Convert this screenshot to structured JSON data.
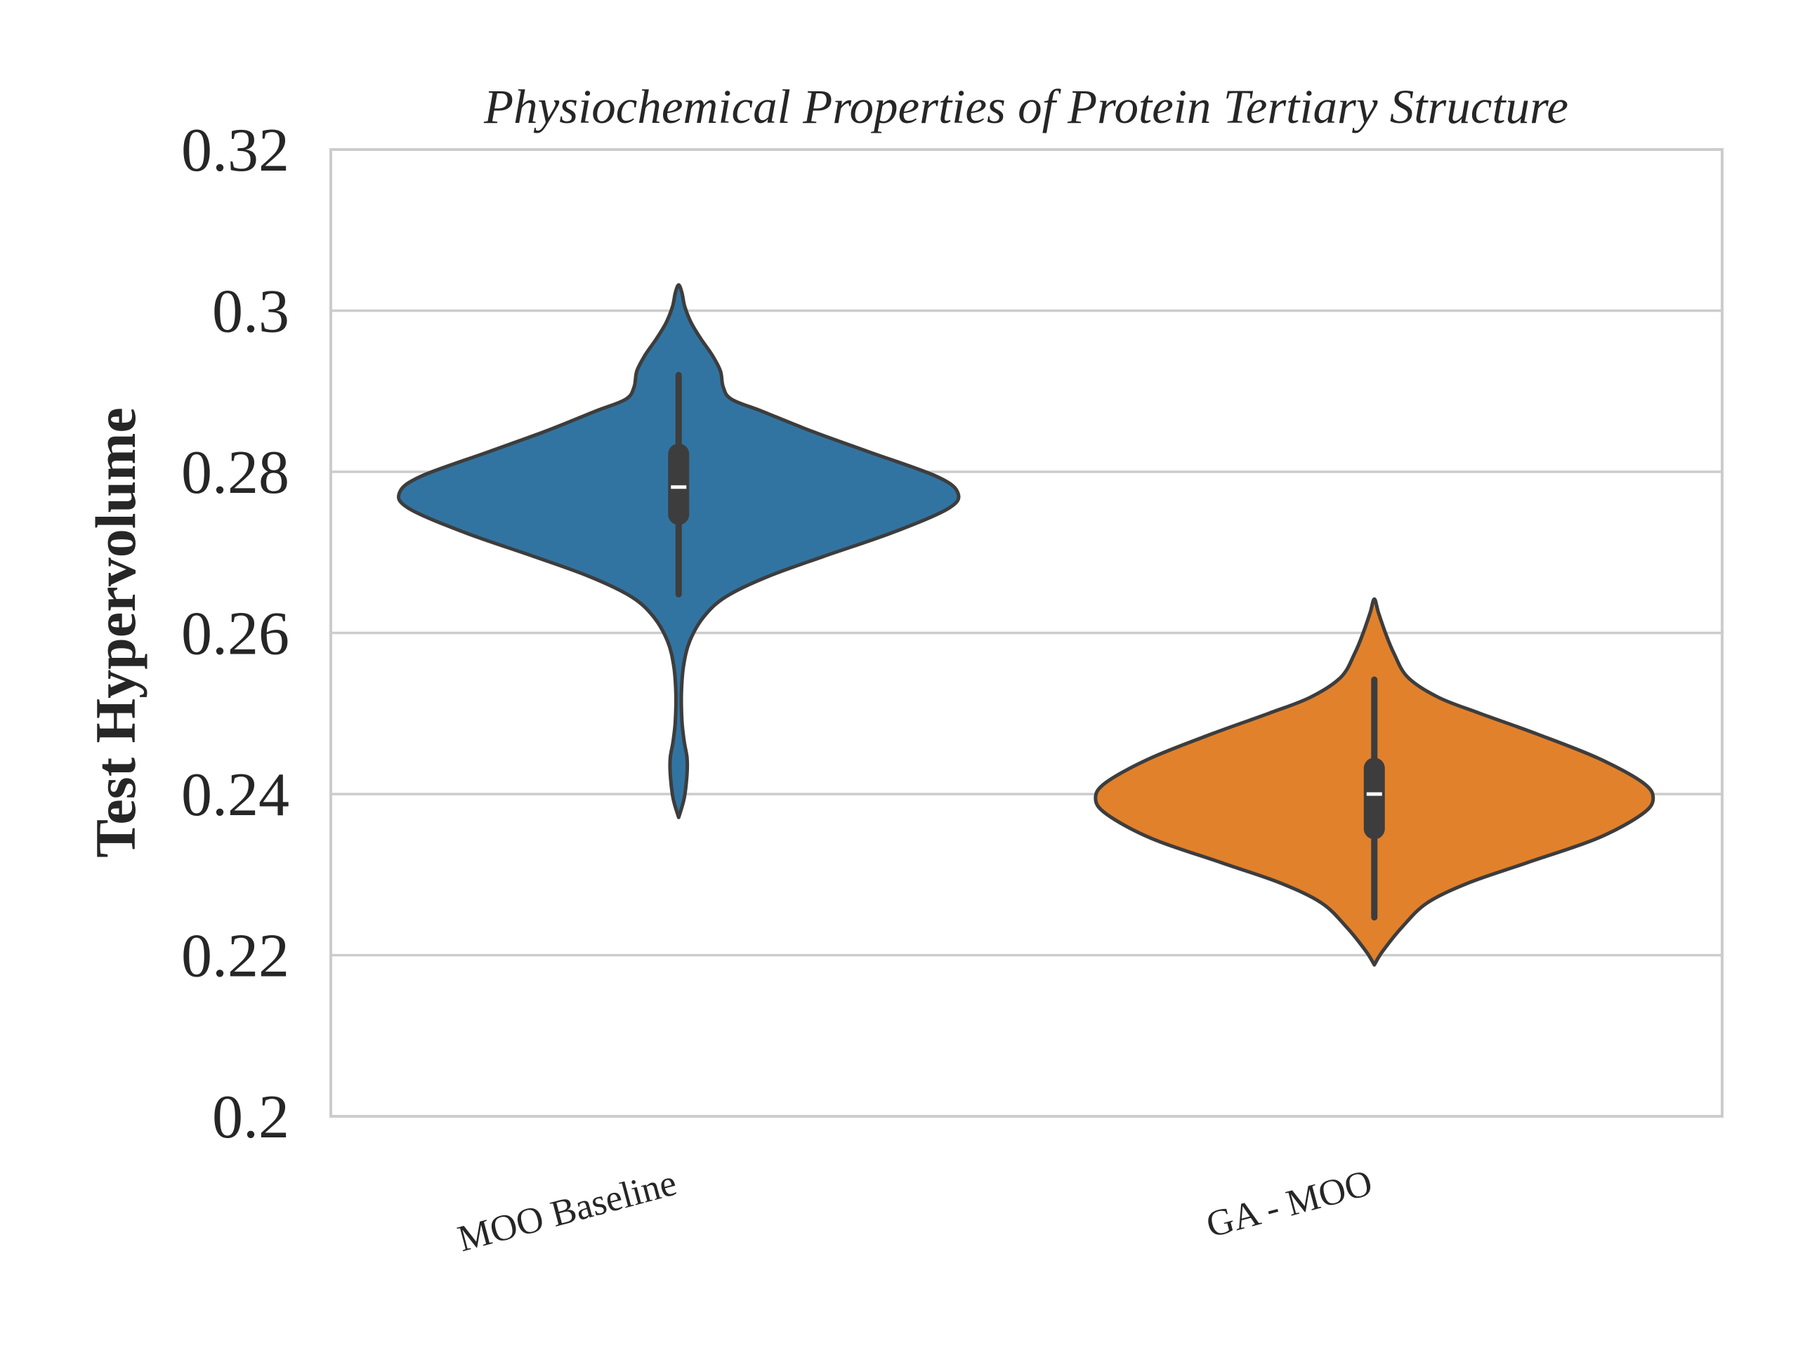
{
  "chart_data": {
    "type": "violin",
    "title": "Physiochemical Properties of Protein Tertiary Structure",
    "xlabel": "",
    "ylabel": "Test Hypervolume",
    "ylim": [
      0.2,
      0.32
    ],
    "yticks": [
      0.2,
      0.22,
      0.24,
      0.26,
      0.28,
      0.3,
      0.32
    ],
    "ytick_labels": [
      "0.2",
      "0.22",
      "0.24",
      "0.26",
      "0.28",
      "0.3",
      "0.32"
    ],
    "grid": true,
    "categories": [
      "MOO Baseline",
      "GA - MOO"
    ],
    "series": [
      {
        "category": "MOO Baseline",
        "color": "#3274a1",
        "min": 0.2648,
        "q1": 0.2747,
        "median": 0.2781,
        "q3": 0.2822,
        "max": 0.292,
        "density": [
          [
            0.2371,
            0.0
          ],
          [
            0.2395,
            0.02
          ],
          [
            0.2425,
            0.03
          ],
          [
            0.2445,
            0.03
          ],
          [
            0.2465,
            0.02
          ],
          [
            0.249,
            0.012
          ],
          [
            0.2525,
            0.01
          ],
          [
            0.256,
            0.018
          ],
          [
            0.259,
            0.04
          ],
          [
            0.262,
            0.09
          ],
          [
            0.2645,
            0.17
          ],
          [
            0.267,
            0.32
          ],
          [
            0.2695,
            0.52
          ],
          [
            0.2725,
            0.77
          ],
          [
            0.2755,
            0.97
          ],
          [
            0.2775,
            1.0
          ],
          [
            0.2795,
            0.92
          ],
          [
            0.2825,
            0.68
          ],
          [
            0.285,
            0.48
          ],
          [
            0.2875,
            0.3
          ],
          [
            0.289,
            0.19
          ],
          [
            0.2905,
            0.16
          ],
          [
            0.2925,
            0.15
          ],
          [
            0.2945,
            0.12
          ],
          [
            0.2965,
            0.08
          ],
          [
            0.2985,
            0.045
          ],
          [
            0.3005,
            0.022
          ],
          [
            0.3022,
            0.012
          ],
          [
            0.3032,
            0.0
          ]
        ]
      },
      {
        "category": "GA - MOO",
        "color": "#e1812c",
        "min": 0.2247,
        "q1": 0.2357,
        "median": 0.24,
        "q3": 0.2432,
        "max": 0.2542,
        "density": [
          [
            0.2188,
            0.0
          ],
          [
            0.2205,
            0.03
          ],
          [
            0.2235,
            0.1
          ],
          [
            0.2265,
            0.19
          ],
          [
            0.229,
            0.34
          ],
          [
            0.2315,
            0.55
          ],
          [
            0.2345,
            0.8
          ],
          [
            0.2375,
            0.96
          ],
          [
            0.2395,
            1.0
          ],
          [
            0.2415,
            0.96
          ],
          [
            0.2445,
            0.8
          ],
          [
            0.2475,
            0.58
          ],
          [
            0.25,
            0.38
          ],
          [
            0.252,
            0.23
          ],
          [
            0.2545,
            0.12
          ],
          [
            0.2575,
            0.07
          ],
          [
            0.26,
            0.04
          ],
          [
            0.2625,
            0.015
          ],
          [
            0.2642,
            0.0
          ]
        ]
      }
    ]
  }
}
